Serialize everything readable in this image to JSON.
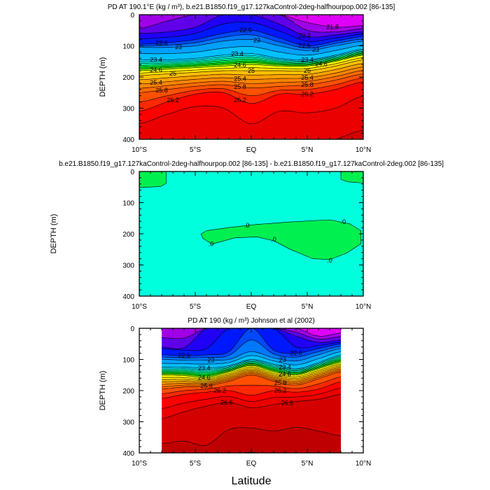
{
  "chart_data": [
    {
      "type": "contour",
      "title": "PD AT 190.1°E (kg / m³), b.e21.B1850.f19_g17.127kaControl-2deg-halfhourpop.002 [86-135]",
      "xlabel": "",
      "ylabel": "DEPTH (m)",
      "xlim": [
        -10,
        10
      ],
      "ylim": [
        0,
        400
      ],
      "xticks": [
        "10°S",
        "5°S",
        "EQ",
        "5°N",
        "10°N"
      ],
      "yticks": [
        "0",
        "100",
        "200",
        "300",
        "400"
      ],
      "levels": {
        "min": 21.8,
        "max": 26.6,
        "step": 0.2
      },
      "lats": [
        -10,
        -7.5,
        -5,
        -2.5,
        0,
        2.5,
        5,
        7.5,
        10
      ],
      "contour_depths": [
        {
          "level": 21.8,
          "depth": [
            0,
            0,
            0,
            0,
            0,
            0,
            25,
            40,
            35
          ]
        },
        {
          "level": 22.0,
          "depth": [
            45,
            20,
            0,
            0,
            0,
            0,
            50,
            55,
            45
          ]
        },
        {
          "level": 22.2,
          "depth": [
            60,
            55,
            40,
            0,
            0,
            30,
            70,
            65,
            55
          ]
        },
        {
          "level": 22.6,
          "depth": [
            95,
            90,
            80,
            60,
            50,
            75,
            100,
            85,
            70
          ]
        },
        {
          "level": 23.0,
          "depth": [
            105,
            105,
            100,
            85,
            80,
            100,
            115,
            100,
            85
          ]
        },
        {
          "level": 23.4,
          "depth": [
            145,
            145,
            140,
            130,
            125,
            140,
            145,
            130,
            110
          ]
        },
        {
          "level": 24.6,
          "depth": [
            180,
            175,
            170,
            165,
            160,
            165,
            165,
            150,
            130
          ]
        },
        {
          "level": 25.0,
          "depth": [
            195,
            190,
            185,
            180,
            180,
            180,
            180,
            165,
            145
          ]
        },
        {
          "level": 25.8,
          "depth": [
            250,
            240,
            230,
            225,
            235,
            230,
            225,
            210,
            190
          ]
        },
        {
          "level": 26.2,
          "depth": [
            310,
            280,
            255,
            250,
            285,
            255,
            255,
            240,
            215
          ]
        },
        {
          "level": 26.4,
          "depth": [
            350,
            320,
            295,
            300,
            350,
            310,
            315,
            300,
            260
          ]
        },
        {
          "level": 26.6,
          "depth": [
            420,
            420,
            420,
            420,
            420,
            420,
            420,
            400,
            370
          ]
        }
      ],
      "contour_labels": [
        {
          "text": "21.8",
          "level": 21.8,
          "lat": 7.3
        },
        {
          "text": "22.2",
          "level": 22.2,
          "lat": 4.8
        },
        {
          "text": "22.6",
          "level": 22.6,
          "lat": -8.0
        },
        {
          "text": "22.6",
          "level": 22.6,
          "lat": -0.5
        },
        {
          "text": "22.6",
          "level": 22.6,
          "lat": 4.8
        },
        {
          "text": "23",
          "level": 23.0,
          "lat": -6.5
        },
        {
          "text": "23",
          "level": 23.0,
          "lat": 0.5
        },
        {
          "text": "23",
          "level": 23.0,
          "lat": 5.0
        },
        {
          "text": "23.4",
          "level": 23.4,
          "lat": -8.5
        },
        {
          "text": "23.4",
          "level": 23.4,
          "lat": -1.3
        },
        {
          "text": "23.4",
          "level": 23.4,
          "lat": 5.0
        },
        {
          "text": "24.6",
          "level": 24.6,
          "lat": -8.5
        },
        {
          "text": "24.6",
          "level": 24.6,
          "lat": -1.0
        },
        {
          "text": "24.6",
          "level": 24.6,
          "lat": 5.0
        },
        {
          "text": "25",
          "level": 25.0,
          "lat": -7.0
        },
        {
          "text": "25",
          "level": 25.0,
          "lat": 0.0
        },
        {
          "text": "25",
          "level": 25.0,
          "lat": 5.0
        },
        {
          "text": "25.4",
          "level": 25.4,
          "lat": -8.5
        },
        {
          "text": "25.4",
          "level": 25.4,
          "lat": -1.0
        },
        {
          "text": "25.4",
          "level": 25.4,
          "lat": 5.0
        },
        {
          "text": "25.8",
          "level": 25.8,
          "lat": -8.0
        },
        {
          "text": "25.8",
          "level": 25.8,
          "lat": -1.0
        },
        {
          "text": "25.8",
          "level": 25.8,
          "lat": 5.0
        },
        {
          "text": "26.2",
          "level": 26.2,
          "lat": -7.0
        },
        {
          "text": "26.2",
          "level": 26.2,
          "lat": -1.0
        },
        {
          "text": "26.2",
          "level": 26.2,
          "lat": 5.0
        }
      ]
    },
    {
      "type": "contour",
      "title": "b.e21.B1850.f19_g17.127kaControl-2deg-halfhourpop.002 [86-135] - b.e21.B1850.f19_g17.127kaControl-2deg.002 [86-135]",
      "ylabel": "DEPTH (m)",
      "xlim": [
        -10,
        10
      ],
      "ylim": [
        0,
        400
      ],
      "xticks": [
        "10°S",
        "5°S",
        "EQ",
        "5°N",
        "10°N"
      ],
      "yticks": [
        "0",
        "100",
        "200",
        "300",
        "400"
      ],
      "regions_above_zero": [
        [
          [
            -10,
            0
          ],
          [
            -7.6,
            0
          ],
          [
            -7.6,
            38
          ],
          [
            -8.1,
            48
          ],
          [
            -10,
            52
          ]
        ],
        [
          [
            8.0,
            0
          ],
          [
            10,
            0
          ],
          [
            10,
            37
          ],
          [
            8.6,
            33
          ],
          [
            8.0,
            25
          ]
        ],
        [
          [
            -4.5,
            201
          ],
          [
            -4.0,
            190
          ],
          [
            -2,
            180
          ],
          [
            0.5,
            170
          ],
          [
            3.5,
            162
          ],
          [
            7,
            155
          ],
          [
            8.8,
            168
          ],
          [
            9.8,
            190
          ],
          [
            9.8,
            232
          ],
          [
            8.5,
            262
          ],
          [
            7,
            283
          ],
          [
            5.5,
            280
          ],
          [
            3.5,
            250
          ],
          [
            2,
            222
          ],
          [
            0.5,
            210
          ],
          [
            -1.5,
            213
          ],
          [
            -3.5,
            233
          ],
          [
            -4.3,
            215
          ]
        ]
      ],
      "contour_labels": [
        {
          "text": ".0",
          "lat": -0.4,
          "depth": 173
        },
        {
          "text": ".0",
          "lat": -3.6,
          "depth": 233
        },
        {
          "text": ".0",
          "lat": 2.0,
          "depth": 218
        },
        {
          "text": ".0",
          "lat": 8.2,
          "depth": 162
        },
        {
          "text": ".0",
          "lat": 7.0,
          "depth": 285
        }
      ]
    },
    {
      "type": "contour",
      "title": "PD AT 190 (kg / m³) Johnson et al (2002)",
      "xlabel": "Latitude",
      "ylabel": "DEPTH (m)",
      "xlim": [
        -10,
        10
      ],
      "ylim": [
        0,
        400
      ],
      "xticks": [
        "10°S",
        "5°S",
        "EQ",
        "5°N",
        "10°N"
      ],
      "yticks": [
        "0",
        "100",
        "200",
        "300",
        "400"
      ],
      "levels": {
        "min": 21.8,
        "max": 27.0,
        "step": 0.2
      },
      "lats": [
        -8,
        -6,
        -4,
        -2,
        0,
        2,
        4,
        6,
        8
      ],
      "contour_depths": [
        {
          "level": 21.8,
          "depth": [
            0,
            0,
            0,
            0,
            0,
            0,
            0,
            25,
            15
          ]
        },
        {
          "level": 22.2,
          "depth": [
            60,
            62,
            0,
            0,
            0,
            0,
            25,
            45,
            38
          ]
        },
        {
          "level": 22.4,
          "depth": [
            65,
            70,
            65,
            0,
            0,
            0,
            60,
            55,
            45
          ]
        },
        {
          "level": 22.6,
          "depth": [
            85,
            88,
            85,
            75,
            0,
            70,
            80,
            65,
            50
          ]
        },
        {
          "level": 23.0,
          "depth": [
            100,
            102,
            102,
            100,
            75,
            95,
            105,
            85,
            65
          ]
        },
        {
          "level": 23.4,
          "depth": [
            125,
            125,
            128,
            120,
            100,
            115,
            130,
            110,
            85
          ]
        },
        {
          "level": 24.6,
          "depth": [
            150,
            152,
            158,
            140,
            120,
            140,
            150,
            130,
            110
          ]
        },
        {
          "level": 25.8,
          "depth": [
            195,
            188,
            185,
            170,
            150,
            170,
            182,
            162,
            140
          ]
        },
        {
          "level": 26.2,
          "depth": [
            225,
            212,
            205,
            200,
            215,
            200,
            205,
            195,
            172
          ]
        },
        {
          "level": 26.6,
          "depth": [
            290,
            268,
            250,
            238,
            255,
            245,
            235,
            228,
            212
          ]
        },
        {
          "level": 26.8,
          "depth": [
            370,
            362,
            375,
            325,
            320,
            330,
            318,
            330,
            345
          ]
        },
        {
          "level": 27.0,
          "depth": [
            405,
            405,
            405,
            405,
            398,
            405,
            405,
            405,
            405
          ]
        }
      ],
      "contour_labels": [
        {
          "text": "22.6",
          "level": 22.6,
          "lat": -6.0
        },
        {
          "text": "22.6",
          "level": 22.6,
          "lat": 4.0
        },
        {
          "text": "23",
          "level": 23.0,
          "lat": -3.5
        },
        {
          "text": "23",
          "level": 23.0,
          "lat": 2.8
        },
        {
          "text": "23.4",
          "level": 23.4,
          "lat": -4.2
        },
        {
          "text": "23.4",
          "level": 23.4,
          "lat": 2.6
        },
        {
          "text": "24.6",
          "level": 24.6,
          "lat": -4.2
        },
        {
          "text": "24.6",
          "level": 24.6,
          "lat": 2.6
        },
        {
          "text": "25.8",
          "level": 25.8,
          "lat": -4.0
        },
        {
          "text": "25.8",
          "level": 25.8,
          "lat": 2.6
        },
        {
          "text": "26.2",
          "level": 26.2,
          "lat": -3.6
        },
        {
          "text": "26.2",
          "level": 26.2,
          "lat": 2.6
        },
        {
          "text": "26.6",
          "level": 26.6,
          "lat": -2.3
        },
        {
          "text": "26.6",
          "level": 26.6,
          "lat": 3.2
        }
      ]
    }
  ],
  "palette_stops": [
    {
      "v": 21.6,
      "c": "#ff00ff"
    },
    {
      "v": 22.0,
      "c": "#8000e0"
    },
    {
      "v": 22.4,
      "c": "#0000ff"
    },
    {
      "v": 23.0,
      "c": "#0090ff"
    },
    {
      "v": 23.6,
      "c": "#00f0ff"
    },
    {
      "v": 24.0,
      "c": "#00ff80"
    },
    {
      "v": 24.3,
      "c": "#00e000"
    },
    {
      "v": 24.7,
      "c": "#ffff00"
    },
    {
      "v": 25.3,
      "c": "#ffa000"
    },
    {
      "v": 25.9,
      "c": "#ff5000"
    },
    {
      "v": 26.3,
      "c": "#ff0000"
    },
    {
      "v": 27.0,
      "c": "#b40000"
    }
  ],
  "diff_colors": {
    "background": "#00ffdc",
    "positive": "#00f050"
  }
}
